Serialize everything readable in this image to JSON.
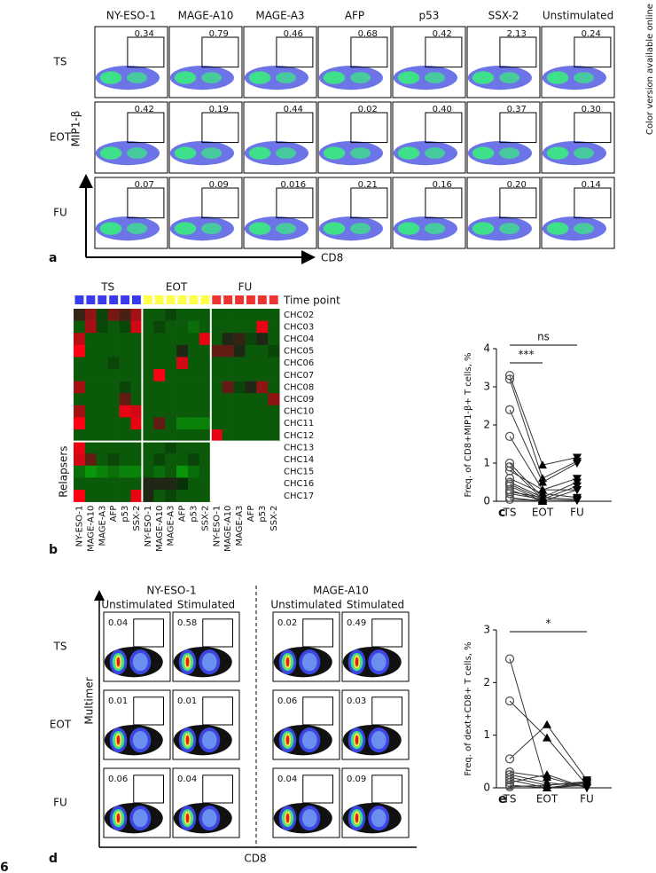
{
  "side_note": "Color version available online",
  "page_number": "6",
  "panel_a": {
    "label": "a",
    "columns": [
      "NY-ESO-1",
      "MAGE-A10",
      "MAGE-A3",
      "AFP",
      "p53",
      "SSX-2",
      "Unstimulated"
    ],
    "rows": [
      "TS",
      "EOT",
      "FU"
    ],
    "values": [
      [
        "0.34",
        "0.79",
        "0.46",
        "0.68",
        "0.42",
        "2.13",
        "0.24"
      ],
      [
        "0.42",
        "0.19",
        "0.44",
        "0.02",
        "0.40",
        "0.37",
        "0.30"
      ],
      [
        "0.07",
        "0.09",
        "0.016",
        "0.21",
        "0.16",
        "0.20",
        "0.14"
      ]
    ],
    "y_axis": "MIP1-β",
    "x_axis": "CD8"
  },
  "panel_b": {
    "label": "b",
    "type": "heatmap",
    "groups": [
      {
        "name": "TS",
        "color": "#3a3af0"
      },
      {
        "name": "EOT",
        "color": "#ffff4a"
      },
      {
        "name": "FU",
        "color": "#ee3333"
      }
    ],
    "legend": "Time point",
    "relapsers": "Relapsers",
    "rows": [
      "CHC02",
      "CHC03",
      "CHC04",
      "CHC05",
      "CHC06",
      "CHC07",
      "CHC08",
      "CHC09",
      "CHC10",
      "CHC11",
      "CHC12",
      "CHC13",
      "CHC14",
      "CHC15",
      "CHC16",
      "CHC17"
    ],
    "columns": [
      "NY-ESO-1",
      "MAGE-A10",
      "MAGE-A3",
      "AFP",
      "p53",
      "SSX-2",
      "NY-ESO-1",
      "MAGE-A10",
      "MAGE-A3",
      "AFP",
      "p53",
      "SSX-2",
      "NY-ESO-1",
      "MAGE-A10",
      "MAGE-A3",
      "AFP",
      "p53",
      "SSX-2"
    ],
    "values": [
      [
        0.1,
        0.5,
        -0.2,
        0.4,
        0.2,
        0.6,
        -0.3,
        -0.3,
        -0.2,
        -0.3,
        -0.3,
        -0.3,
        -0.3,
        -0.3,
        -0.3,
        -0.3,
        -0.3,
        -0.3
      ],
      [
        -0.3,
        0.6,
        -0.2,
        -0.3,
        -0.2,
        0.8,
        -0.3,
        -0.2,
        -0.3,
        -0.3,
        -0.4,
        -0.3,
        -0.3,
        -0.3,
        -0.3,
        -0.3,
        0.9,
        -0.3
      ],
      [
        0.7,
        -0.3,
        -0.3,
        -0.3,
        -0.3,
        -0.3,
        -0.3,
        -0.3,
        -0.3,
        -0.3,
        -0.3,
        0.9,
        -0.3,
        0.0,
        0.1,
        -0.2,
        0.0,
        -0.3
      ],
      [
        1.0,
        -0.3,
        -0.3,
        -0.3,
        -0.3,
        -0.3,
        -0.3,
        -0.3,
        -0.3,
        0.0,
        -0.3,
        -0.3,
        0.3,
        0.3,
        0.0,
        -0.3,
        -0.3,
        -0.2
      ],
      [
        -0.3,
        -0.3,
        -0.3,
        -0.2,
        -0.3,
        -0.3,
        -0.3,
        -0.3,
        -0.3,
        0.8,
        -0.3,
        -0.3,
        -0.3,
        -0.3,
        -0.3,
        -0.3,
        -0.3,
        -0.3
      ],
      [
        -0.3,
        -0.3,
        -0.3,
        -0.3,
        -0.3,
        -0.3,
        -0.3,
        1.0,
        -0.3,
        -0.3,
        -0.3,
        -0.3,
        -0.3,
        -0.3,
        -0.3,
        -0.3,
        -0.3,
        -0.3
      ],
      [
        0.6,
        -0.3,
        -0.3,
        -0.3,
        -0.2,
        -0.3,
        -0.3,
        -0.3,
        -0.3,
        -0.3,
        -0.3,
        -0.3,
        -0.3,
        0.3,
        -0.2,
        0.0,
        0.5,
        -0.3
      ],
      [
        -0.3,
        -0.3,
        -0.3,
        -0.3,
        0.3,
        -0.3,
        -0.3,
        -0.3,
        -0.3,
        -0.3,
        -0.3,
        -0.3,
        -0.3,
        -0.3,
        -0.3,
        -0.3,
        -0.3,
        0.5
      ],
      [
        0.6,
        -0.3,
        -0.3,
        -0.3,
        0.9,
        0.8,
        -0.3,
        -0.3,
        -0.3,
        -0.3,
        -0.3,
        -0.3,
        -0.3,
        -0.3,
        -0.3,
        -0.3,
        -0.3,
        -0.3
      ],
      [
        1.0,
        -0.3,
        -0.3,
        -0.3,
        -0.3,
        0.9,
        -0.3,
        0.3,
        -0.3,
        -0.5,
        -0.5,
        -0.5,
        -0.3,
        -0.3,
        -0.3,
        -0.3,
        -0.3,
        -0.3
      ],
      [
        -0.3,
        -0.3,
        -0.3,
        -0.3,
        -0.3,
        -0.3,
        -0.3,
        -0.3,
        -0.3,
        -0.3,
        -0.3,
        -0.3,
        0.9,
        -0.3,
        -0.3,
        -0.3,
        -0.3,
        -0.3
      ],
      [
        0.9,
        -0.3,
        -0.3,
        -0.3,
        -0.3,
        -0.3,
        -0.3,
        -0.3,
        -0.2,
        -0.3,
        -0.3,
        -0.3,
        null,
        null,
        null,
        null,
        null,
        null
      ],
      [
        0.8,
        0.3,
        -0.3,
        -0.2,
        -0.3,
        -0.3,
        -0.3,
        -0.2,
        -0.3,
        -0.3,
        -0.2,
        -0.3,
        null,
        null,
        null,
        null,
        null,
        null
      ],
      [
        -0.4,
        -0.6,
        -0.5,
        -0.4,
        -0.5,
        -0.5,
        -0.3,
        -0.4,
        -0.3,
        -0.6,
        -0.4,
        -0.3,
        null,
        null,
        null,
        null,
        null,
        null
      ],
      [
        -0.3,
        -0.3,
        -0.3,
        -0.3,
        -0.3,
        -0.3,
        0.0,
        0.0,
        0.0,
        -0.1,
        -0.3,
        -0.3,
        null,
        null,
        null,
        null,
        null,
        null
      ],
      [
        1.0,
        -0.3,
        -0.3,
        -0.3,
        -0.3,
        0.9,
        0.0,
        -0.3,
        -0.2,
        -0.3,
        -0.3,
        -0.3,
        null,
        null,
        null,
        null,
        null,
        null
      ]
    ]
  },
  "panel_c": {
    "label": "c",
    "type": "paired",
    "ylabel": "Freq. of CD8+MIP1-β+ T cells, %",
    "categories": [
      "TS",
      "EOT",
      "FU"
    ],
    "ylim": [
      0,
      4
    ],
    "yticks": [
      0,
      1,
      2,
      3,
      4
    ],
    "annotations": [
      "ns",
      "***"
    ],
    "values": [
      [
        3.3,
        0.95,
        1.15
      ],
      [
        3.2,
        0.6,
        1.05
      ],
      [
        2.4,
        0.5,
        1.0
      ],
      [
        1.7,
        0.3,
        0.6
      ],
      [
        1.0,
        0.1,
        0.5
      ],
      [
        0.9,
        0.05,
        0.4
      ],
      [
        0.8,
        0.3,
        0.3
      ],
      [
        0.6,
        0.2,
        0.1
      ],
      [
        0.5,
        0.1,
        0.05
      ],
      [
        0.45,
        0.05,
        0.02
      ],
      [
        0.4,
        0.0,
        0.3
      ],
      [
        0.3,
        0.0,
        null
      ],
      [
        0.25,
        0.1,
        null
      ],
      [
        0.2,
        0.05,
        null
      ],
      [
        0.1,
        0.0,
        null
      ],
      [
        0.05,
        0.02,
        null
      ]
    ]
  },
  "panel_d": {
    "label": "d",
    "groups": [
      "NY-ESO-1",
      "MAGE-A10"
    ],
    "conditions": [
      "Unstimulated",
      "Stimulated",
      "Unstimulated",
      "Stimulated"
    ],
    "rows": [
      "TS",
      "EOT",
      "FU"
    ],
    "values": [
      [
        "0.04",
        "0.58",
        "0.02",
        "0.49"
      ],
      [
        "0.01",
        "0.01",
        "0.06",
        "0.03"
      ],
      [
        "0.06",
        "0.04",
        "0.04",
        "0.09"
      ]
    ],
    "y_axis": "Multimer",
    "x_axis": "CD8"
  },
  "panel_e": {
    "label": "e",
    "type": "paired",
    "ylabel": "Freq. of dext+CD8+ T cells, %",
    "categories": [
      "TS",
      "EOT",
      "FU"
    ],
    "ylim": [
      0,
      3
    ],
    "yticks": [
      0,
      1,
      2,
      3
    ],
    "annotations": [
      "*"
    ],
    "values": [
      [
        2.45,
        0.0,
        0.1
      ],
      [
        1.65,
        0.95,
        0.05
      ],
      [
        0.55,
        1.2,
        0.15
      ],
      [
        0.3,
        0.2,
        0.0
      ],
      [
        0.25,
        0.1,
        0.02
      ],
      [
        0.2,
        0.05,
        0.1
      ],
      [
        0.15,
        0.0,
        0.05
      ],
      [
        0.1,
        0.25,
        0.0
      ],
      [
        0.05,
        0.0,
        0.08
      ],
      [
        0.02,
        0.05,
        0.12
      ]
    ]
  }
}
